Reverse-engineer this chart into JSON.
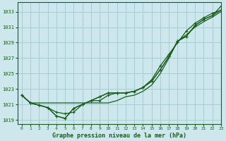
{
  "title": "Graphe pression niveau de la mer (hPa)",
  "bg_color": "#cce8ed",
  "grid_color": "#a8cdd4",
  "line_color": "#1a5c1a",
  "xlim": [
    -0.5,
    23
  ],
  "ylim": [
    1018.5,
    1034.2
  ],
  "xticks": [
    0,
    1,
    2,
    3,
    4,
    5,
    6,
    7,
    8,
    9,
    10,
    11,
    12,
    13,
    14,
    15,
    16,
    17,
    18,
    19,
    20,
    21,
    22,
    23
  ],
  "yticks": [
    1019,
    1021,
    1023,
    1025,
    1027,
    1029,
    1031,
    1033
  ],
  "line1_x": [
    0,
    1,
    2,
    3,
    4,
    5,
    6,
    7,
    8,
    9,
    10,
    11,
    12,
    13,
    14,
    15,
    16,
    17,
    18,
    19,
    20,
    21,
    22,
    23
  ],
  "line1_y": [
    1022.2,
    1021.2,
    1020.9,
    1020.6,
    1019.5,
    1019.2,
    1020.5,
    1021.0,
    1021.5,
    1022.0,
    1022.5,
    1022.5,
    1022.5,
    1022.7,
    1023.2,
    1024.0,
    1025.5,
    1027.2,
    1029.2,
    1029.8,
    1031.2,
    1032.0,
    1032.5,
    1033.7
  ],
  "line2_x": [
    0,
    1,
    2,
    3,
    4,
    5,
    6,
    7,
    8,
    9,
    10,
    11,
    12,
    13,
    14,
    15,
    16,
    17,
    18,
    19,
    20,
    21,
    22,
    23
  ],
  "line2_y": [
    1022.2,
    1021.2,
    1020.9,
    1020.6,
    1019.5,
    1019.2,
    1020.5,
    1021.0,
    1021.5,
    1022.0,
    1022.5,
    1022.5,
    1022.5,
    1022.7,
    1023.2,
    1024.0,
    1025.5,
    1027.2,
    1029.2,
    1029.8,
    1031.2,
    1032.0,
    1032.5,
    1033.2
  ],
  "line3_x": [
    0,
    1,
    2,
    3,
    4,
    5,
    6,
    7,
    8,
    9,
    10,
    11,
    12,
    13,
    14,
    15,
    16,
    17,
    18,
    19,
    20,
    21,
    22,
    23
  ],
  "line3_y": [
    1022.2,
    1021.2,
    1020.9,
    1020.6,
    1020.0,
    1019.8,
    1020.0,
    1021.0,
    1021.5,
    1021.5,
    1022.2,
    1022.5,
    1022.5,
    1022.7,
    1023.2,
    1024.2,
    1026.0,
    1027.5,
    1029.0,
    1030.5,
    1031.5,
    1032.2,
    1032.8,
    1033.2
  ],
  "line_no_marker_x": [
    0,
    1,
    2,
    3,
    4,
    5,
    6,
    7,
    8,
    9,
    10,
    11,
    12,
    13,
    14,
    15,
    16,
    17,
    18,
    19,
    20,
    21,
    22,
    23
  ],
  "line_no_marker_y": [
    1022.2,
    1021.2,
    1021.2,
    1021.2,
    1021.2,
    1021.2,
    1021.2,
    1021.2,
    1021.2,
    1021.2,
    1021.2,
    1021.5,
    1022.0,
    1022.2,
    1022.7,
    1023.5,
    1025.0,
    1027.0,
    1029.2,
    1030.0,
    1031.0,
    1031.7,
    1032.3,
    1033.0
  ]
}
